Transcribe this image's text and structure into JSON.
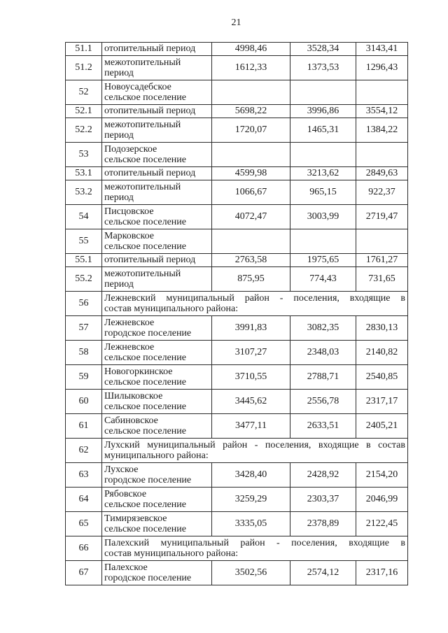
{
  "page": {
    "number": "21"
  },
  "document": {
    "colors": {
      "ink": "#1c1c1c",
      "border": "#2b2b2b",
      "paper": "#ffffff"
    }
  },
  "table": {
    "rows": [
      {
        "num": "51.1",
        "name_lines": [
          "отопительный период"
        ],
        "v1": "4998,46",
        "v2": "3528,34",
        "v3": "3143,41"
      },
      {
        "num": "51.2",
        "name_lines": [
          "межотопительный",
          "период"
        ],
        "v1": "1612,33",
        "v2": "1373,53",
        "v3": "1296,43"
      },
      {
        "num": "52",
        "name_lines": [
          "Новоусадебское",
          "сельское поселение"
        ],
        "v1": "",
        "v2": "",
        "v3": ""
      },
      {
        "num": "52.1",
        "name_lines": [
          "отопительный период"
        ],
        "v1": "5698,22",
        "v2": "3996,86",
        "v3": "3554,12"
      },
      {
        "num": "52.2",
        "name_lines": [
          "межотопительный",
          "период"
        ],
        "v1": "1720,07",
        "v2": "1465,31",
        "v3": "1384,22"
      },
      {
        "num": "53",
        "name_lines": [
          "Подозерское",
          "сельское поселение"
        ],
        "v1": "",
        "v2": "",
        "v3": ""
      },
      {
        "num": "53.1",
        "name_lines": [
          "отопительный период"
        ],
        "v1": "4599,98",
        "v2": "3213,62",
        "v3": "2849,63"
      },
      {
        "num": "53.2",
        "name_lines": [
          "межотопительный",
          "период"
        ],
        "v1": "1066,67",
        "v2": "965,15",
        "v3": "922,37"
      },
      {
        "num": "54",
        "name_lines": [
          "Писцовское",
          "сельское поселение"
        ],
        "v1": "4072,47",
        "v2": "3003,99",
        "v3": "2719,47"
      },
      {
        "num": "55",
        "name_lines": [
          "Марковское",
          "сельское поселение"
        ],
        "v1": "",
        "v2": "",
        "v3": ""
      },
      {
        "num": "55.1",
        "name_lines": [
          "отопительный период"
        ],
        "v1": "2763,58",
        "v2": "1975,65",
        "v3": "1761,27"
      },
      {
        "num": "55.2",
        "name_lines": [
          "межотопительный",
          "период"
        ],
        "v1": "875,95",
        "v2": "774,43",
        "v3": "731,65"
      },
      {
        "num": "56",
        "span": true,
        "lines": [
          "Лежневский муниципальный район - поселения, входящие в",
          "состав муниципального района:"
        ]
      },
      {
        "num": "57",
        "name_lines": [
          "Лежневское",
          "городское поселение"
        ],
        "v1": "3991,83",
        "v2": "3082,35",
        "v3": "2830,13"
      },
      {
        "num": "58",
        "name_lines": [
          "Лежневское",
          "сельское поселение"
        ],
        "v1": "3107,27",
        "v2": "2348,03",
        "v3": "2140,82"
      },
      {
        "num": "59",
        "name_lines": [
          "Новогоркинское",
          "сельское поселение"
        ],
        "v1": "3710,55",
        "v2": "2788,71",
        "v3": "2540,85"
      },
      {
        "num": "60",
        "name_lines": [
          "Шилыковское",
          "сельское поселение"
        ],
        "v1": "3445,62",
        "v2": "2556,78",
        "v3": "2317,17"
      },
      {
        "num": "61",
        "name_lines": [
          "Сабиновское",
          "сельское поселение"
        ],
        "v1": "3477,11",
        "v2": "2633,51",
        "v3": "2405,21"
      },
      {
        "num": "62",
        "span": true,
        "lines": [
          "Лухский муниципальный район - поселения, входящие в состав",
          "муниципального района:"
        ]
      },
      {
        "num": "63",
        "name_lines": [
          "Лухское",
          "городское поселение"
        ],
        "v1": "3428,40",
        "v2": "2428,92",
        "v3": "2154,20"
      },
      {
        "num": "64",
        "name_lines": [
          "Рябовское",
          "сельское поселение"
        ],
        "v1": "3259,29",
        "v2": "2303,37",
        "v3": "2046,99"
      },
      {
        "num": "65",
        "name_lines": [
          "Тимирязевское",
          "сельское поселение"
        ],
        "v1": "3335,05",
        "v2": "2378,89",
        "v3": "2122,45"
      },
      {
        "num": "66",
        "span": true,
        "lines": [
          "Палехский муниципальный район - поселения, входящие в",
          "состав муниципального района:"
        ]
      },
      {
        "num": "67",
        "name_lines": [
          "Палехское",
          "городское поселение"
        ],
        "v1": "3502,56",
        "v2": "2574,12",
        "v3": "2317,16"
      }
    ]
  }
}
